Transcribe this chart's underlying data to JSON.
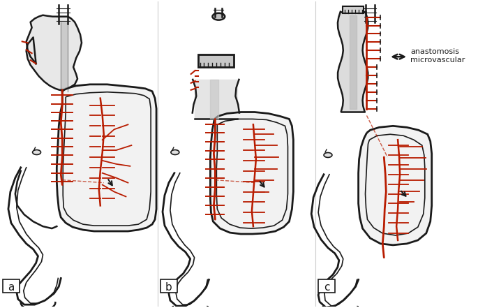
{
  "bg_color": "#ffffff",
  "ink_color": "#1a1a1a",
  "red_color": "#b81c00",
  "gray_color": "#888888",
  "label_a": "a",
  "label_b": "b",
  "label_c": "c",
  "annotation_line1": "microvascular",
  "annotation_line2": "anastomosis",
  "fig_width": 6.85,
  "fig_height": 4.41,
  "dpi": 100
}
